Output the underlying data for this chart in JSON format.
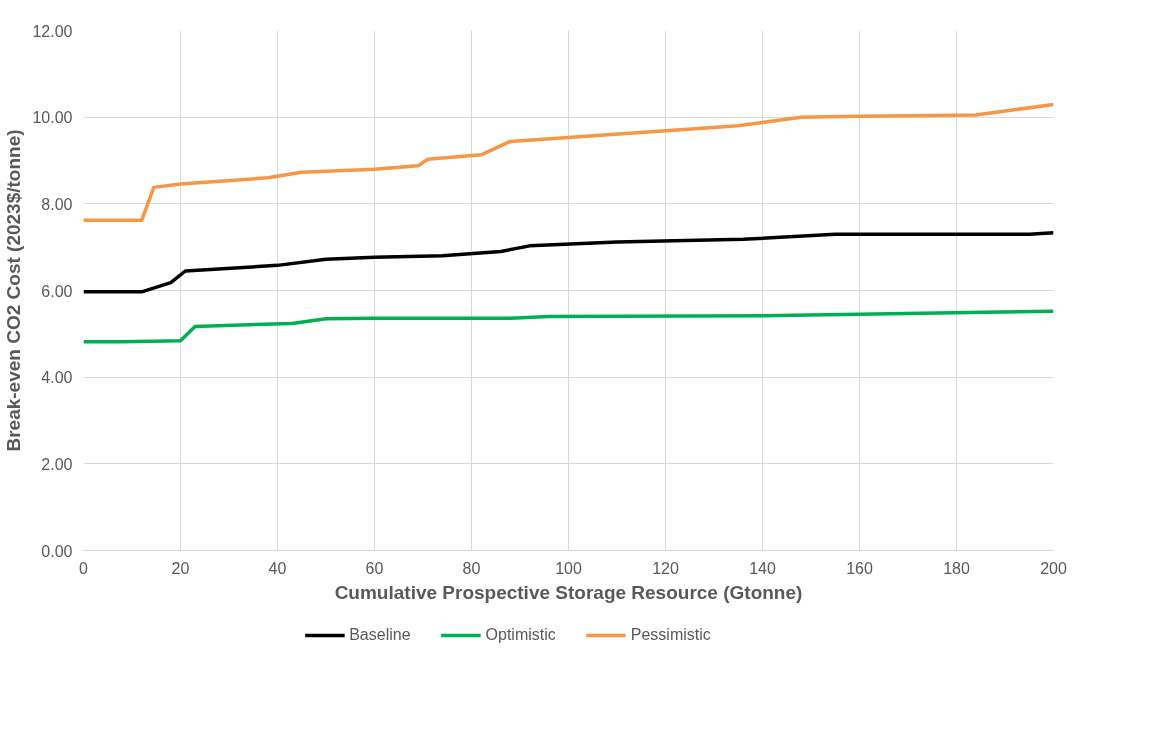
{
  "chart_data": {
    "type": "line",
    "xlabel": "Cumulative Prospective Storage Resource (Gtonne)",
    "ylabel": "Break-even CO2 Cost (2023$/tonne)",
    "xlim": [
      0,
      200
    ],
    "xticks": [
      0,
      20,
      40,
      60,
      80,
      100,
      120,
      140,
      160,
      180,
      200
    ],
    "ylim": [
      0,
      12
    ],
    "yticks": [
      {
        "value": 0,
        "label": "0.00"
      },
      {
        "value": 2,
        "label": "2.00"
      },
      {
        "value": 4,
        "label": "4.00"
      },
      {
        "value": 6,
        "label": "6.00"
      },
      {
        "value": 8,
        "label": "8.00"
      },
      {
        "value": 10,
        "label": "10.00"
      },
      {
        "value": 12,
        "label": "12.00"
      }
    ],
    "grid": true,
    "legend": "bottom",
    "marker": "none",
    "line_style": "solid",
    "series": [
      {
        "name": "Baseline",
        "color": "#000000",
        "x": [
          0,
          12,
          18,
          21,
          40,
          50,
          60,
          74,
          86,
          92,
          110,
          136,
          155,
          195,
          200
        ],
        "values": [
          5.97,
          5.97,
          6.18,
          6.45,
          6.58,
          6.72,
          6.77,
          6.8,
          6.9,
          7.03,
          7.12,
          7.18,
          7.3,
          7.3,
          7.33
        ]
      },
      {
        "name": "Optimistic",
        "color": "#00b050",
        "x": [
          0,
          8,
          20,
          23,
          43,
          50,
          60,
          88,
          96,
          140,
          200
        ],
        "values": [
          4.82,
          4.82,
          4.84,
          5.17,
          5.24,
          5.35,
          5.36,
          5.36,
          5.4,
          5.42,
          5.52
        ]
      },
      {
        "name": "Pessimistic",
        "color": "#f79646",
        "x": [
          0,
          12,
          14.5,
          20,
          38,
          45,
          60,
          69,
          71,
          82,
          88,
          135,
          148,
          160,
          184,
          200
        ],
        "values": [
          7.62,
          7.62,
          8.38,
          8.46,
          8.6,
          8.73,
          8.8,
          8.88,
          9.03,
          9.13,
          9.44,
          9.8,
          10.0,
          10.02,
          10.05,
          10.29
        ]
      }
    ]
  }
}
